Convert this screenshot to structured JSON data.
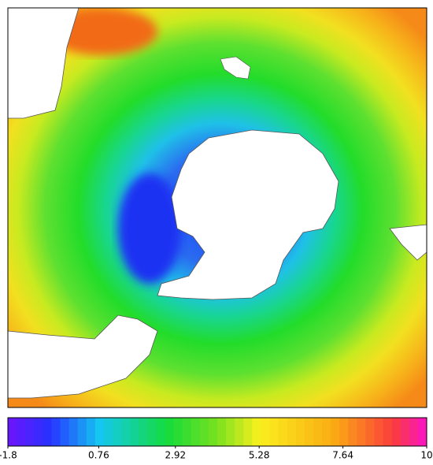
{
  "map": {
    "colorbar": {
      "range": [
        -1.8,
        10
      ],
      "ticks": [
        -1.8,
        0.76,
        2.92,
        5.28,
        7.64,
        10
      ]
    }
  }
}
